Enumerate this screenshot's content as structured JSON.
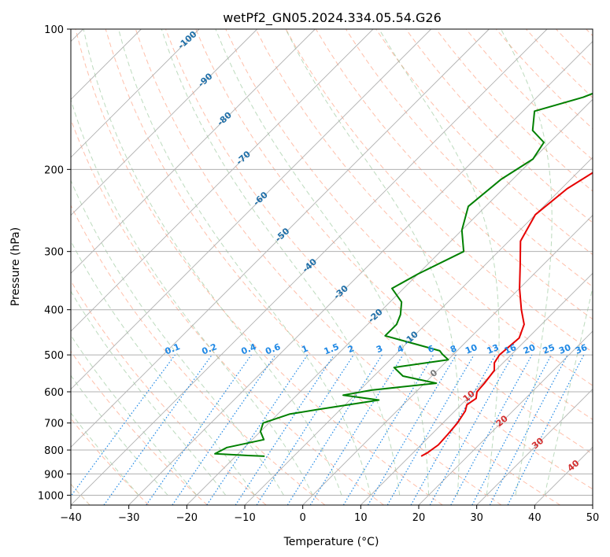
{
  "chart_data": {
    "type": "line",
    "title": "wetPf2_GN05.2024.334.05.54.G26",
    "xlabel": "Temperature (°C)",
    "ylabel": "Pressure (hPa)",
    "xlim": [
      -40,
      50
    ],
    "ylim": [
      1050,
      100
    ],
    "y_scale": "log",
    "grid": true,
    "x_ticks": [
      -40,
      -30,
      -20,
      -10,
      0,
      10,
      20,
      30,
      40,
      50
    ],
    "y_ticks": [
      100,
      200,
      300,
      400,
      500,
      600,
      700,
      800,
      900,
      1000
    ],
    "colors": {
      "temperature": "#e60000",
      "dewpoint": "#008000",
      "isotherm_label": "#1f6fa8",
      "mixing_ratio": "#1e88e5",
      "moist_adiabat": "#d32f2f",
      "dry_adiabat": "#ff7043",
      "wet_adiabat_light": "#66bb6a",
      "grid": "#b0b0b0"
    },
    "series": [
      {
        "key": "temperature",
        "points": [
          [
            12,
            825
          ],
          [
            12.5,
            810
          ],
          [
            13,
            780
          ],
          [
            12.8,
            740
          ],
          [
            12.5,
            700
          ],
          [
            11.8,
            660
          ],
          [
            11,
            640
          ],
          [
            11.5,
            620
          ],
          [
            10.5,
            600
          ],
          [
            10.3,
            575
          ],
          [
            9.8,
            540
          ],
          [
            8.5,
            520
          ],
          [
            8,
            500
          ],
          [
            8.5,
            460
          ],
          [
            7,
            430
          ],
          [
            4,
            400
          ],
          [
            0,
            360
          ],
          [
            -4,
            320
          ],
          [
            -8,
            285
          ],
          [
            -10,
            250
          ],
          [
            -9,
            220
          ],
          [
            -7,
            200
          ],
          [
            -2,
            190
          ],
          [
            6,
            175
          ],
          [
            11,
            165
          ],
          [
            13,
            150
          ],
          [
            14,
            130
          ],
          [
            14.5,
            120
          ],
          [
            15.5,
            112
          ],
          [
            20,
            100
          ]
        ]
      },
      {
        "key": "dewpoint",
        "points": [
          [
            -15,
            825
          ],
          [
            -18,
            822
          ],
          [
            -24,
            815
          ],
          [
            -23,
            790
          ],
          [
            -18,
            760
          ],
          [
            -20,
            730
          ],
          [
            -21,
            700
          ],
          [
            -18,
            670
          ],
          [
            -14,
            655
          ],
          [
            -5,
            625
          ],
          [
            -12,
            610
          ],
          [
            -8,
            595
          ],
          [
            2,
            575
          ],
          [
            -5,
            555
          ],
          [
            -8,
            532
          ],
          [
            0,
            512
          ],
          [
            -2,
            498
          ],
          [
            -3,
            490
          ],
          [
            -8,
            475
          ],
          [
            -15,
            455
          ],
          [
            -15,
            430
          ],
          [
            -16,
            410
          ],
          [
            -18,
            385
          ],
          [
            -22,
            360
          ],
          [
            -20,
            335
          ],
          [
            -16,
            300
          ],
          [
            -20,
            270
          ],
          [
            -23,
            240
          ],
          [
            -22,
            210
          ],
          [
            -20,
            190
          ],
          [
            -21,
            175
          ],
          [
            -25,
            165
          ],
          [
            -28,
            150
          ],
          [
            -22,
            140
          ],
          [
            -18,
            130
          ],
          [
            -12,
            120
          ],
          [
            -8,
            110
          ],
          [
            -5,
            100
          ]
        ]
      }
    ],
    "isotherm_labels": [
      "-100",
      "-90",
      "-80",
      "-70",
      "-60",
      "-50",
      "-40",
      "-30",
      "-20",
      "-10"
    ],
    "mixing_ratio_labels": [
      "0.1",
      "0.2",
      "0.4",
      "0.6",
      "1",
      "1.5",
      "2",
      "3",
      "4",
      "6",
      "8",
      "10",
      "13",
      "16",
      "20",
      "25",
      "30",
      "36"
    ],
    "moist_adiabat_labels": [
      "0",
      "10",
      "20",
      "30",
      "40"
    ]
  }
}
